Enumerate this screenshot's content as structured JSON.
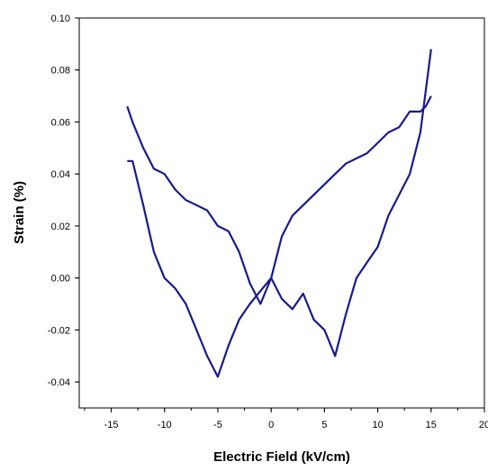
{
  "chart_data": {
    "type": "line",
    "title": "",
    "xlabel": "Electric Field (kV/cm)",
    "ylabel": "Strain (%)",
    "xlim": [
      -18,
      20
    ],
    "ylim": [
      -0.05,
      0.1
    ],
    "x_ticks": [
      -15,
      -10,
      -5,
      0,
      5,
      10,
      15,
      20
    ],
    "y_ticks": [
      -0.04,
      -0.02,
      0.0,
      0.02,
      0.04,
      0.06,
      0.08,
      0.1
    ],
    "x_tick_labels": [
      "-15",
      "-10",
      "-5",
      "0",
      "5",
      "10",
      "15",
      "20"
    ],
    "y_tick_labels": [
      "-0.04",
      "-0.02",
      "0.00",
      "0.02",
      "0.04",
      "0.06",
      "0.08",
      "0.10"
    ],
    "grid": false,
    "line_color": "#1a1a8c",
    "series": [
      {
        "x": [
          15,
          14.5,
          14,
          13,
          12,
          11,
          10,
          9,
          8,
          7,
          6,
          5,
          4,
          3,
          2,
          1,
          0,
          -1,
          -2,
          -3,
          -4,
          -5,
          -6,
          -7,
          -8,
          -9,
          -10,
          -11,
          -12,
          -13,
          -13.5
        ],
        "y": [
          0.07,
          0.066,
          0.064,
          0.064,
          0.058,
          0.056,
          0.052,
          0.048,
          0.046,
          0.044,
          0.04,
          0.036,
          0.032,
          0.028,
          0.024,
          0.016,
          0.0,
          -0.01,
          -0.002,
          0.01,
          0.018,
          0.02,
          0.026,
          0.028,
          0.03,
          0.034,
          0.04,
          0.042,
          0.05,
          0.06,
          0.066
        ]
      },
      {
        "x": [
          -13.5,
          -13,
          -12,
          -11,
          -10,
          -9,
          -8,
          -7,
          -6,
          -5,
          -4,
          -3,
          -2,
          -1,
          0,
          1,
          2,
          3,
          4,
          5,
          6,
          7,
          8,
          9,
          10,
          11,
          12,
          13,
          14,
          15
        ],
        "y": [
          0.045,
          0.045,
          0.028,
          0.01,
          0.0,
          -0.004,
          -0.01,
          -0.02,
          -0.03,
          -0.038,
          -0.026,
          -0.016,
          -0.01,
          -0.005,
          0.0,
          -0.008,
          -0.012,
          -0.006,
          -0.016,
          -0.02,
          -0.03,
          -0.014,
          0.0,
          0.006,
          0.012,
          0.024,
          0.032,
          0.04,
          0.056,
          0.088
        ]
      }
    ]
  }
}
